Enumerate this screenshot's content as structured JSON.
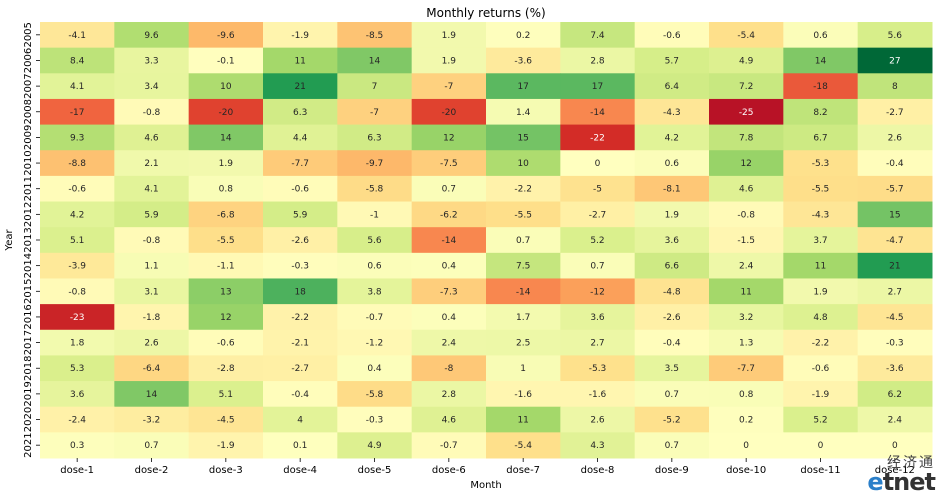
{
  "chart_data": {
    "type": "heatmap",
    "title": "Monthly returns (%)",
    "xlabel": "Month",
    "ylabel": "Year",
    "x_categories": [
      "dose-1",
      "dose-2",
      "dose-3",
      "dose-4",
      "dose-5",
      "dose-6",
      "dose-7",
      "dose-8",
      "dose-9",
      "dose-10",
      "dose-11",
      "dose-12"
    ],
    "y_categories": [
      "2005",
      "2006",
      "2007",
      "2008",
      "2009",
      "2010",
      "2011",
      "2012",
      "2013",
      "2014",
      "2015",
      "2016",
      "2017",
      "2018",
      "2019",
      "2020",
      "2021"
    ],
    "values": [
      [
        -4.1,
        9.6,
        -9.6,
        -1.9,
        -8.5,
        1.9,
        0.2,
        7.4,
        -0.6,
        -5.4,
        0.6,
        5.6
      ],
      [
        8.4,
        3.3,
        -0.1,
        11,
        14,
        1.9,
        -3.6,
        2.8,
        5.7,
        4.9,
        14,
        27
      ],
      [
        4.1,
        3.4,
        10,
        21,
        7,
        -7,
        17,
        17,
        6.4,
        7.2,
        -18,
        8
      ],
      [
        -17,
        -0.8,
        -20,
        6.3,
        -7,
        -20,
        1.4,
        -14,
        -4.3,
        -25,
        8.2,
        -2.7
      ],
      [
        9.3,
        4.6,
        14,
        4.4,
        6.3,
        12,
        15,
        -22,
        4.2,
        7.8,
        6.7,
        2.6
      ],
      [
        -8.8,
        2.1,
        1.9,
        -7.7,
        -9.7,
        -7.5,
        10,
        0,
        0.6,
        12,
        -5.3,
        -0.4
      ],
      [
        -0.6,
        4.1,
        0.8,
        -0.6,
        -5.8,
        0.7,
        -2.2,
        -5,
        -8.1,
        4.6,
        -5.5,
        -5.7
      ],
      [
        4.2,
        5.9,
        -6.8,
        5.9,
        -1,
        -6.2,
        -5.5,
        -2.7,
        1.9,
        -0.8,
        -4.3,
        15
      ],
      [
        5.1,
        -0.8,
        -5.5,
        -2.6,
        5.6,
        -14,
        0.7,
        5.2,
        3.6,
        -1.5,
        3.7,
        -4.7
      ],
      [
        -3.9,
        1.1,
        -1.1,
        -0.3,
        0.6,
        0.4,
        7.5,
        0.7,
        6.6,
        2.4,
        11,
        21
      ],
      [
        -0.8,
        3.1,
        13,
        18,
        3.8,
        -7.3,
        -14,
        -12,
        -4.8,
        11,
        1.9,
        2.7
      ],
      [
        -23,
        -1.8,
        12,
        -2.2,
        -0.7,
        0.4,
        1.7,
        3.6,
        -2.6,
        3.2,
        4.8,
        -4.5
      ],
      [
        1.8,
        2.6,
        -0.6,
        -2.1,
        -1.2,
        2.4,
        2.5,
        2.7,
        -0.4,
        1.3,
        -2.2,
        -0.3
      ],
      [
        5.3,
        -6.4,
        -2.8,
        -2.7,
        0.4,
        -8,
        1,
        -5.3,
        3.5,
        -7.7,
        -0.6,
        -3.6
      ],
      [
        3.6,
        14,
        5.1,
        -0.4,
        -5.8,
        2.8,
        -1.6,
        -1.6,
        0.7,
        0.8,
        -1.9,
        6.2
      ],
      [
        -2.4,
        -3.2,
        -4.5,
        4,
        -0.3,
        4.6,
        11,
        2.6,
        -5.2,
        0.2,
        5.2,
        2.4
      ],
      [
        0.3,
        0.7,
        -1.9,
        0.1,
        4.9,
        -0.7,
        -5.4,
        4.3,
        0.7,
        0,
        0,
        0
      ]
    ],
    "colormap": "RdYlGn",
    "vmin": -27,
    "vmax": 27,
    "colorbar": false,
    "grid": false
  },
  "watermark": {
    "chinese": "经济通",
    "english_e": "e",
    "english_rest": "tnet"
  }
}
